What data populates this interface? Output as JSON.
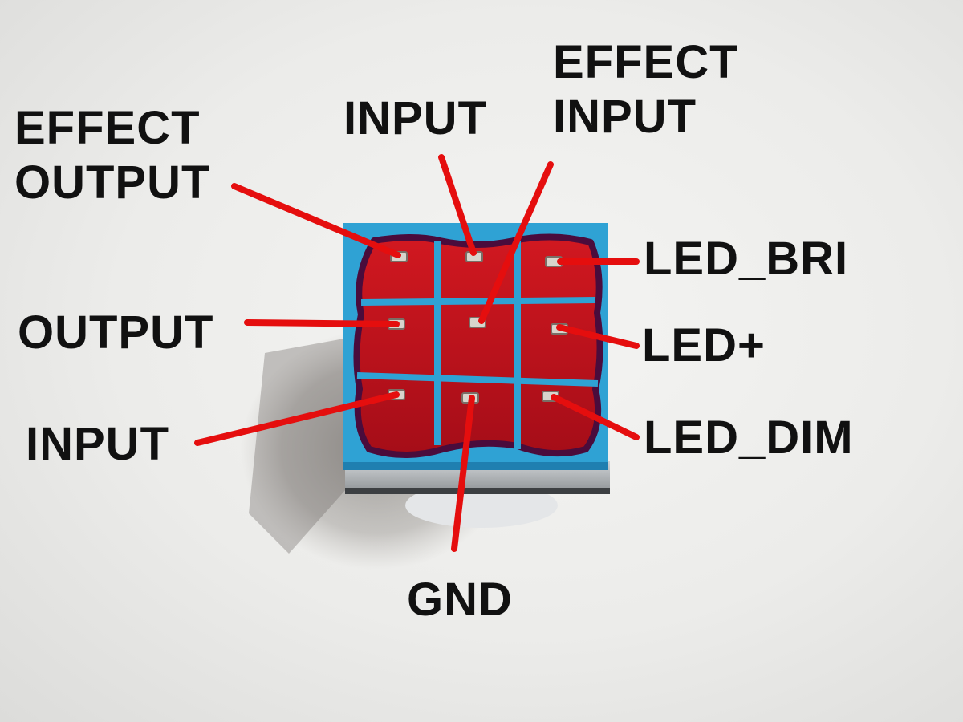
{
  "colors": {
    "background": "#ececea",
    "leader_line": "#e50e0e",
    "pcb_solder_mask": "#2fa2d4",
    "pad_fill": "#c2121c",
    "pad_outline": "#4a0c3c",
    "pin": "#d8d4cc",
    "label_text": "#111111"
  },
  "labels": {
    "effect_output": [
      "EFFECT",
      "OUTPUT"
    ],
    "top_input": "INPUT",
    "effect_input": [
      "EFFECT",
      "INPUT"
    ],
    "led_bri": "LED_BRI",
    "output": "OUTPUT",
    "led_plus": "LED+",
    "bottom_input": "INPUT",
    "led_dim": "LED_DIM",
    "gnd": "GND"
  }
}
